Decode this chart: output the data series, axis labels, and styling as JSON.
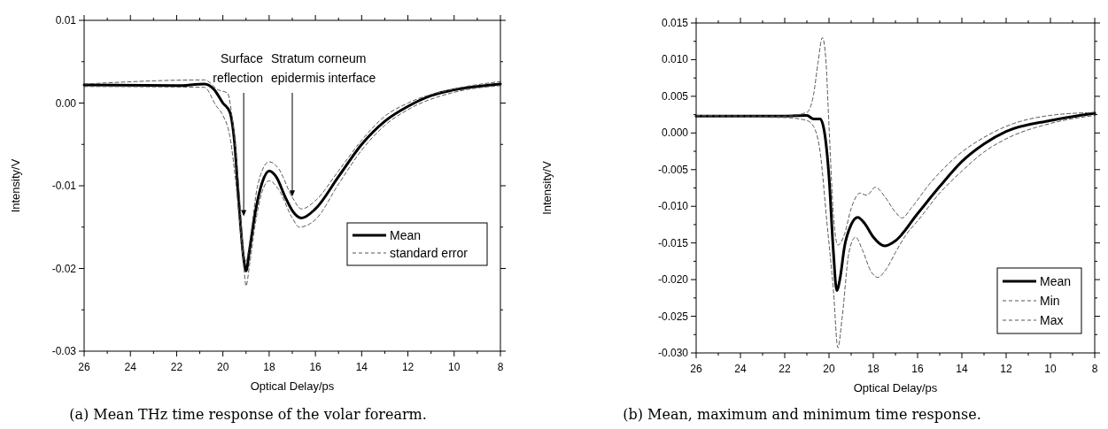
{
  "chart_data": [
    {
      "type": "line",
      "xlabel": "Optical Delay/ps",
      "ylabel": "Intensity/V",
      "xlim": [
        26,
        8
      ],
      "ylim": [
        -0.03,
        0.01
      ],
      "xticks": [
        26,
        {
          "value": 25,
          "label": null
        },
        24,
        {
          "value": 23,
          "label": null
        },
        22,
        {
          "value": 21,
          "label": null
        },
        20,
        {
          "value": 19,
          "label": null
        },
        18,
        {
          "value": 17,
          "label": null
        },
        16,
        {
          "value": 15,
          "label": null
        },
        14,
        {
          "value": 13,
          "label": null
        },
        12,
        {
          "value": 11,
          "label": null
        },
        10,
        {
          "value": 9,
          "label": null
        },
        8
      ],
      "yticks": [
        {
          "value": -0.03,
          "label": "-0.03"
        },
        {
          "value": -0.025,
          "label": null
        },
        {
          "value": -0.02,
          "label": "-0.02"
        },
        {
          "value": -0.015,
          "label": null
        },
        {
          "value": -0.01,
          "label": "-0.01"
        },
        {
          "value": -0.005,
          "label": null
        },
        {
          "value": 0,
          "label": "0.00"
        },
        {
          "value": 0.005,
          "label": null
        },
        {
          "value": 0.01,
          "label": "0.01"
        }
      ],
      "legend": "right",
      "grid": false,
      "series": [
        {
          "name": "Mean",
          "color": "#000000",
          "line_style": "solid",
          "x": [
            26,
            22,
            20.8,
            20.4,
            20,
            19.7,
            19.5,
            19.3,
            19.1,
            19,
            18.85,
            18.6,
            18.3,
            18,
            17.7,
            17.3,
            17,
            16.6,
            16,
            15,
            14,
            13,
            12,
            11,
            10,
            9,
            8
          ],
          "values": [
            0.0022,
            0.0021,
            0.0023,
            0.0017,
            0,
            -0.0011,
            -0.0047,
            -0.0125,
            -0.0189,
            -0.0203,
            -0.0178,
            -0.0132,
            -0.0096,
            -0.0082,
            -0.0089,
            -0.0114,
            -0.013,
            -0.0139,
            -0.0128,
            -0.0089,
            -0.005,
            -0.0022,
            -0.0004,
            0.0009,
            0.0016,
            0.002,
            0.0023
          ]
        },
        {
          "name": "standard error",
          "color": "#555555",
          "line_style": "dashed",
          "x": [
            26,
            20.8,
            20.2,
            19.8,
            19.6,
            19.3,
            19.1,
            19,
            18.8,
            18.5,
            18,
            17.6,
            17,
            16.6,
            16,
            15,
            14,
            13,
            12,
            10,
            8
          ],
          "values": [
            0.0023,
            0.0028,
            0.0016,
            0.0012,
            -0.0018,
            -0.0107,
            -0.0182,
            -0.0191,
            -0.016,
            -0.01,
            -0.0071,
            -0.0079,
            -0.0114,
            -0.0128,
            -0.0118,
            -0.0082,
            -0.0045,
            -0.0016,
            0,
            0.0017,
            0.0026
          ]
        },
        {
          "color": "#555555",
          "line_style": "dashed",
          "x": [
            26,
            20.8,
            20.3,
            20,
            19.7,
            19.4,
            19.1,
            19,
            18.85,
            18.6,
            18.3,
            18,
            17.6,
            17,
            16.7,
            16,
            15,
            14,
            13,
            12,
            10,
            8
          ],
          "values": [
            0.002,
            0.0019,
            -0.0003,
            -0.0015,
            -0.004,
            -0.0107,
            -0.0196,
            -0.0221,
            -0.0196,
            -0.0146,
            -0.0107,
            -0.0094,
            -0.0104,
            -0.0139,
            -0.015,
            -0.0141,
            -0.0098,
            -0.0057,
            -0.0027,
            -0.0008,
            0.0013,
            0.0021
          ]
        }
      ],
      "annotations": [
        {
          "text": "Surface\nreflection",
          "x": 19.1,
          "y": -0.0137
        },
        {
          "text": "Stratum corneum\nepidermis interface",
          "x": 17,
          "y": -0.0113
        },
        "(a) Mean THz time response of the volar forearm."
      ]
    },
    {
      "type": "line",
      "xlabel": "Optical Delay/ps",
      "ylabel": "Intensity/V",
      "xlim": [
        26,
        8
      ],
      "ylim": [
        -0.03,
        0.015
      ],
      "xticks": [
        26,
        {
          "value": 25,
          "label": null
        },
        24,
        {
          "value": 23,
          "label": null
        },
        22,
        {
          "value": 21,
          "label": null
        },
        20,
        {
          "value": 19,
          "label": null
        },
        18,
        {
          "value": 17,
          "label": null
        },
        16,
        {
          "value": 15,
          "label": null
        },
        14,
        {
          "value": 13,
          "label": null
        },
        12,
        {
          "value": 11,
          "label": null
        },
        10,
        {
          "value": 9,
          "label": null
        },
        8
      ],
      "yticks": [
        {
          "value": -0.03,
          "label": "-0.030"
        },
        {
          "value": -0.0275,
          "label": null
        },
        {
          "value": -0.025,
          "label": "-0.025"
        },
        {
          "value": -0.0225,
          "label": null
        },
        {
          "value": -0.02,
          "label": "-0.020"
        },
        {
          "value": -0.0175,
          "label": null
        },
        {
          "value": -0.015,
          "label": "-0.015"
        },
        {
          "value": -0.0125,
          "label": null
        },
        {
          "value": -0.01,
          "label": "-0.010"
        },
        {
          "value": -0.0075,
          "label": null
        },
        {
          "value": -0.005,
          "label": "-0.005"
        },
        {
          "value": -0.0025,
          "label": null
        },
        {
          "value": 0,
          "label": "0.000"
        },
        {
          "value": 0.0025,
          "label": null
        },
        {
          "value": 0.005,
          "label": "0.005"
        },
        {
          "value": 0.0075,
          "label": null
        },
        {
          "value": 0.01,
          "label": "0.010"
        },
        {
          "value": 0.0125,
          "label": null
        },
        {
          "value": 0.015,
          "label": "0.015"
        }
      ],
      "legend": "bottom right",
      "grid": false,
      "series": [
        {
          "name": "Mean",
          "color": "#000000",
          "line_style": "solid",
          "x": [
            26,
            22,
            21,
            20.7,
            20.4,
            20.2,
            20,
            19.8,
            19.65,
            19.5,
            19.3,
            19,
            18.7,
            18.4,
            18,
            17.5,
            17,
            16,
            15,
            14,
            13,
            12,
            10,
            8
          ],
          "values": [
            0.0023,
            0.0023,
            0.0024,
            0.0019,
            0.0019,
            0,
            -0.006,
            -0.0163,
            -0.0215,
            -0.0198,
            -0.0155,
            -0.0125,
            -0.0115,
            -0.0123,
            -0.0142,
            -0.0154,
            -0.0147,
            -0.011,
            -0.0073,
            -0.0039,
            -0.0015,
            0.0002,
            0.0017,
            0.0027
          ]
        },
        {
          "name": "Min",
          "color": "#555555",
          "line_style": "dashed",
          "x": [
            26,
            22,
            21,
            20.7,
            20.4,
            20.1,
            19.8,
            19.6,
            19.4,
            19.1,
            18.8,
            18.5,
            18.1,
            17.8,
            17.4,
            17,
            16.5,
            16,
            15,
            14,
            13,
            12,
            10,
            8
          ],
          "values": [
            0.0022,
            0.0021,
            0.0017,
            0.0009,
            -0.0026,
            -0.012,
            -0.0215,
            -0.0293,
            -0.025,
            -0.0163,
            -0.0142,
            -0.0159,
            -0.0189,
            -0.0197,
            -0.0185,
            -0.0163,
            -0.0138,
            -0.012,
            -0.0082,
            -0.0052,
            -0.0026,
            -0.0008,
            0.0013,
            0.0024
          ]
        },
        {
          "name": "Max",
          "color": "#555555",
          "line_style": "dashed",
          "x": [
            26,
            22,
            21,
            20.7,
            20.5,
            20.3,
            20.15,
            20,
            19.8,
            19.6,
            19.3,
            19,
            18.6,
            18.3,
            17.9,
            17.5,
            17,
            16.7,
            16.3,
            15.5,
            15,
            14,
            13,
            12,
            10,
            8
          ],
          "values": [
            0.0024,
            0.0023,
            0.0028,
            0.0052,
            0.0095,
            0.013,
            0.0103,
            0.0009,
            -0.0112,
            -0.0153,
            -0.0138,
            -0.0103,
            -0.0082,
            -0.0085,
            -0.0074,
            -0.0086,
            -0.0108,
            -0.0116,
            -0.0103,
            -0.0071,
            -0.0054,
            -0.0026,
            -0.0006,
            0.0009,
            0.0024,
            0.0028
          ]
        }
      ],
      "annotations": [
        "(b) Mean, maximum and minimum time response."
      ]
    }
  ]
}
